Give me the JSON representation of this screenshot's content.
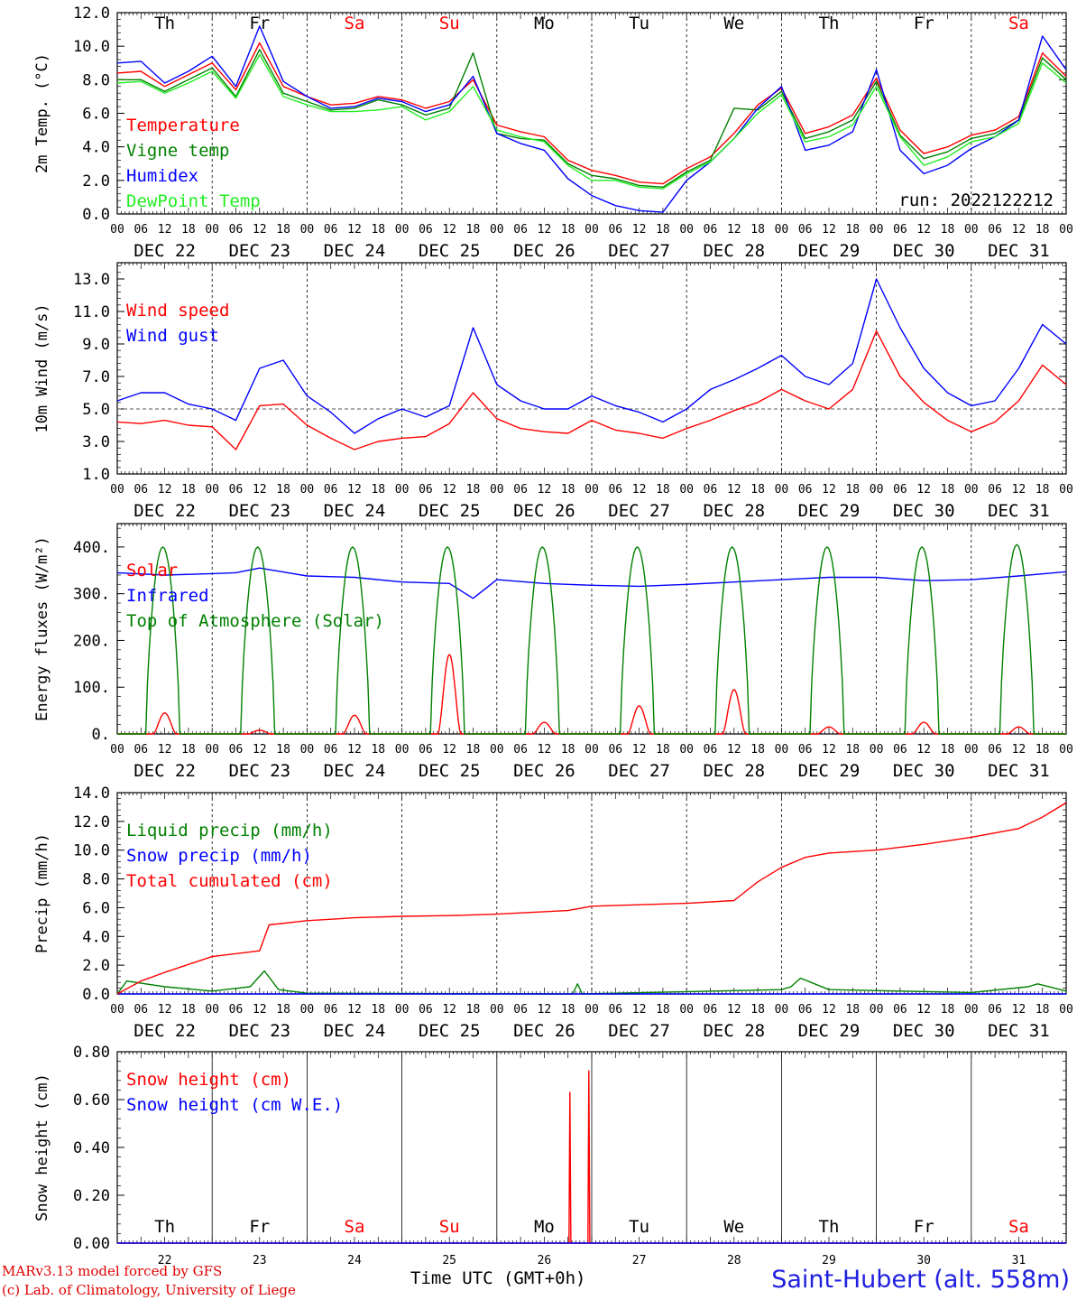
{
  "run_label": "run: 2022122212",
  "footer": {
    "credit_line1": "MARv3.13 model forced by GFS",
    "credit_line2": "(c) Lab. of Climatology, University of Liege",
    "station": "Saint-Hubert (alt. 558m)",
    "x_title": "Time UTC (GMT+0h)"
  },
  "days": {
    "weekdays": [
      "Th",
      "Fr",
      "Sa",
      "Su",
      "Mo",
      "Tu",
      "We",
      "Th",
      "Fr",
      "Sa"
    ],
    "weekend": [
      false,
      false,
      true,
      true,
      false,
      false,
      false,
      false,
      false,
      true
    ],
    "dates": [
      "DEC 22",
      "DEC 23",
      "DEC 24",
      "DEC 25",
      "DEC 26",
      "DEC 27",
      "DEC 28",
      "DEC 29",
      "DEC 30",
      "DEC 31"
    ],
    "day_numbers": [
      "22",
      "23",
      "24",
      "25",
      "26",
      "27",
      "28",
      "29",
      "30",
      "31"
    ],
    "hour_ticks": [
      "00",
      "06",
      "12",
      "18"
    ]
  },
  "colors": {
    "red": "#ff0000",
    "green": "#008000",
    "blue": "#0000ff",
    "lightgreen": "#22ee22",
    "weekend": "#ff0000"
  },
  "chart_data": [
    {
      "type": "line",
      "ylabel": "2m Temp. (°C)",
      "ylim": [
        0,
        12
      ],
      "yticks": [
        "0.0",
        "2.0",
        "4.0",
        "6.0",
        "8.0",
        "10.0",
        "12.0"
      ],
      "x_unit": "days since 2022-12-22 00 UTC",
      "x": [
        0,
        0.25,
        0.5,
        0.75,
        1,
        1.25,
        1.5,
        1.75,
        2,
        2.25,
        2.5,
        2.75,
        3,
        3.25,
        3.5,
        3.75,
        4,
        4.25,
        4.5,
        4.75,
        5,
        5.25,
        5.5,
        5.75,
        6,
        6.25,
        6.5,
        6.75,
        7,
        7.25,
        7.5,
        7.75,
        8,
        8.25,
        8.5,
        8.75,
        9,
        9.25,
        9.5,
        9.75,
        10
      ],
      "series": [
        {
          "name": "Temperature",
          "color": "#ff0000",
          "values": [
            8.4,
            8.5,
            7.6,
            8.3,
            9.0,
            7.4,
            10.2,
            7.6,
            7.0,
            6.5,
            6.6,
            7.0,
            6.8,
            6.3,
            6.7,
            8.0,
            5.3,
            4.9,
            4.6,
            3.2,
            2.6,
            2.3,
            1.9,
            1.8,
            2.7,
            3.4,
            4.8,
            6.5,
            7.5,
            4.8,
            5.2,
            5.9,
            8.1,
            5.0,
            3.6,
            4.0,
            4.7,
            5.0,
            5.8,
            9.6,
            8.2
          ]
        },
        {
          "name": "Vigne temp",
          "color": "#008000",
          "values": [
            8.0,
            8.0,
            7.3,
            8.0,
            8.7,
            7.0,
            9.8,
            7.2,
            6.7,
            6.2,
            6.3,
            6.8,
            6.5,
            5.9,
            6.3,
            9.6,
            4.8,
            4.5,
            4.4,
            3.0,
            2.3,
            2.1,
            1.7,
            1.6,
            2.5,
            3.2,
            6.3,
            6.2,
            7.3,
            4.5,
            4.9,
            5.6,
            7.9,
            4.7,
            3.3,
            3.7,
            4.5,
            4.8,
            5.6,
            9.3,
            8.0
          ]
        },
        {
          "name": "Humidex",
          "color": "#0000ff",
          "values": [
            9.0,
            9.1,
            7.8,
            8.5,
            9.4,
            7.6,
            11.2,
            7.9,
            7.0,
            6.3,
            6.4,
            6.9,
            6.7,
            6.1,
            6.5,
            8.2,
            4.8,
            4.2,
            3.8,
            2.1,
            1.1,
            0.5,
            0.2,
            0.1,
            2.0,
            3.1,
            4.5,
            6.3,
            7.6,
            3.8,
            4.1,
            4.9,
            8.6,
            3.8,
            2.4,
            2.9,
            3.9,
            4.6,
            5.6,
            10.6,
            8.6
          ]
        },
        {
          "name": "DewPoint Temp",
          "color": "#22ee22",
          "values": [
            7.8,
            7.9,
            7.2,
            7.8,
            8.5,
            6.9,
            9.5,
            7.0,
            6.5,
            6.1,
            6.1,
            6.2,
            6.4,
            5.6,
            6.1,
            7.6,
            5.0,
            4.6,
            4.3,
            2.9,
            2.0,
            2.0,
            1.6,
            1.5,
            2.4,
            3.1,
            4.5,
            6.0,
            7.1,
            4.3,
            4.6,
            5.3,
            7.6,
            4.6,
            2.9,
            3.4,
            4.3,
            4.6,
            5.4,
            9.0,
            7.8
          ]
        }
      ]
    },
    {
      "type": "line",
      "ylabel": "10m Wind (m/s)",
      "ylim": [
        1,
        14
      ],
      "yticks": [
        "1.0",
        "3.0",
        "5.0",
        "7.0",
        "9.0",
        "11.0",
        "13.0"
      ],
      "reference_line": 5,
      "x": [
        0,
        0.25,
        0.5,
        0.75,
        1,
        1.25,
        1.5,
        1.75,
        2,
        2.25,
        2.5,
        2.75,
        3,
        3.25,
        3.5,
        3.75,
        4,
        4.25,
        4.5,
        4.75,
        5,
        5.25,
        5.5,
        5.75,
        6,
        6.25,
        6.5,
        6.75,
        7,
        7.25,
        7.5,
        7.75,
        8,
        8.25,
        8.5,
        8.75,
        9,
        9.25,
        9.5,
        9.75,
        10
      ],
      "series": [
        {
          "name": "Wind speed",
          "color": "#ff0000",
          "values": [
            4.2,
            4.1,
            4.3,
            4.0,
            3.9,
            2.5,
            5.2,
            5.3,
            4.0,
            3.2,
            2.5,
            3.0,
            3.2,
            3.3,
            4.1,
            6.0,
            4.4,
            3.8,
            3.6,
            3.5,
            4.3,
            3.7,
            3.5,
            3.2,
            3.8,
            4.3,
            4.9,
            5.4,
            6.2,
            5.5,
            5.0,
            6.2,
            9.8,
            7.0,
            5.4,
            4.3,
            3.6,
            4.2,
            5.5,
            7.7,
            6.5
          ]
        },
        {
          "name": "Wind gust",
          "color": "#0000ff",
          "values": [
            5.5,
            6.0,
            6.0,
            5.3,
            5.0,
            4.3,
            7.5,
            8.0,
            5.8,
            4.8,
            3.5,
            4.4,
            5.0,
            4.5,
            5.2,
            10.0,
            6.5,
            5.5,
            5.0,
            5.0,
            5.8,
            5.2,
            4.8,
            4.2,
            5.0,
            6.2,
            6.8,
            7.5,
            8.3,
            7.0,
            6.5,
            7.8,
            13.0,
            10.0,
            7.5,
            6.0,
            5.2,
            5.5,
            7.5,
            10.2,
            9.0
          ]
        }
      ]
    },
    {
      "type": "line",
      "ylabel": "Energy fluxes (W/m²)",
      "ylim": [
        0,
        450
      ],
      "yticks": [
        "0.",
        "100.",
        "200.",
        "300.",
        "400."
      ],
      "series": [
        {
          "name": "Solar",
          "color": "#ff0000",
          "daily_peaks": [
            45,
            8,
            40,
            170,
            25,
            60,
            95,
            15,
            25,
            15
          ]
        },
        {
          "name": "Infrared",
          "color": "#0000ff",
          "x": [
            0,
            0.5,
            1,
            1.25,
            1.5,
            2,
            2.5,
            3,
            3.5,
            3.75,
            4,
            4.5,
            5,
            5.5,
            6,
            6.5,
            7,
            7.5,
            8,
            8.5,
            9,
            9.5,
            10
          ],
          "values": [
            345,
            340,
            343,
            345,
            355,
            338,
            335,
            325,
            322,
            290,
            330,
            322,
            318,
            316,
            320,
            325,
            330,
            335,
            335,
            328,
            330,
            338,
            347
          ]
        },
        {
          "name": "Top of Atmosphere (Solar)",
          "color": "#008000",
          "daily_peaks": [
            400,
            400,
            400,
            400,
            400,
            400,
            400,
            400,
            400,
            405
          ]
        }
      ]
    },
    {
      "type": "line",
      "ylabel": "Precip (mm/h)",
      "ylim": [
        0,
        14
      ],
      "yticks": [
        "0.0",
        "2.0",
        "4.0",
        "6.0",
        "8.0",
        "10.0",
        "12.0",
        "14.0"
      ],
      "series": [
        {
          "name": "Liquid precip (mm/h)",
          "color": "#008000",
          "x": [
            0,
            0.1,
            0.5,
            1,
            1.4,
            1.55,
            1.7,
            2,
            4.8,
            4.85,
            4.9,
            7,
            7.1,
            7.2,
            7.5,
            9,
            9.6,
            9.7,
            10
          ],
          "values": [
            0,
            0.9,
            0.5,
            0.2,
            0.5,
            1.6,
            0.3,
            0.05,
            0,
            0.7,
            0,
            0.3,
            0.5,
            1.1,
            0.3,
            0.1,
            0.5,
            0.7,
            0.2
          ]
        },
        {
          "name": "Snow precip (mm/h)",
          "color": "#0000ff",
          "x": [
            0,
            10
          ],
          "values": [
            0,
            0
          ]
        },
        {
          "name": "Total cumulated (cm)",
          "color": "#ff0000",
          "x": [
            0,
            0.25,
            0.5,
            1,
            1.5,
            1.6,
            2,
            2.5,
            3,
            3.5,
            4,
            4.75,
            5,
            5.5,
            6,
            6.5,
            6.75,
            7,
            7.25,
            7.5,
            8,
            8.5,
            9,
            9.5,
            9.75,
            10
          ],
          "values": [
            0,
            0.9,
            1.5,
            2.6,
            3.0,
            4.8,
            5.1,
            5.3,
            5.4,
            5.45,
            5.55,
            5.8,
            6.1,
            6.2,
            6.3,
            6.5,
            7.8,
            8.8,
            9.5,
            9.8,
            10.0,
            10.4,
            10.9,
            11.5,
            12.3,
            13.3
          ]
        }
      ]
    },
    {
      "type": "line",
      "ylabel": "Snow height (cm)",
      "ylim": [
        0,
        0.8
      ],
      "yticks": [
        "0.00",
        "0.20",
        "0.40",
        "0.60",
        "0.80"
      ],
      "series": [
        {
          "name": "Snow height (cm)",
          "color": "#ff0000",
          "x": [
            0,
            4.76,
            4.77,
            4.78,
            4.96,
            4.97,
            4.98,
            10
          ],
          "values": [
            0,
            0,
            0.63,
            0,
            0,
            0.72,
            0,
            0
          ]
        },
        {
          "name": "Snow height (cm W.E.)",
          "color": "#0000ff",
          "x": [
            0,
            10
          ],
          "values": [
            0,
            0
          ]
        }
      ]
    }
  ]
}
